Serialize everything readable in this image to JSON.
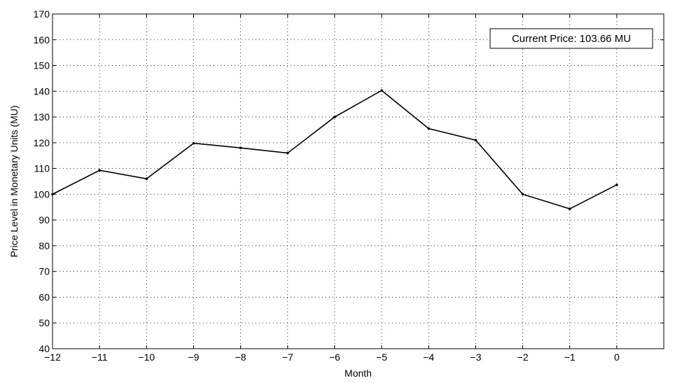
{
  "chart_data": {
    "type": "line",
    "title": "",
    "xlabel": "Month",
    "ylabel": "Price Level in Monetary Units (MU)",
    "xlim": [
      -12,
      1
    ],
    "ylim": [
      40,
      170
    ],
    "xticks": [
      -12,
      -11,
      -10,
      -9,
      -8,
      -7,
      -6,
      -5,
      -4,
      -3,
      -2,
      -1,
      0
    ],
    "yticks": [
      40,
      50,
      60,
      70,
      80,
      90,
      100,
      110,
      120,
      130,
      140,
      150,
      160,
      170
    ],
    "grid": true,
    "x": [
      -12,
      -11,
      -10,
      -9,
      -8,
      -7,
      -6,
      -5,
      -4,
      -3,
      -2,
      -1,
      0
    ],
    "series": [
      {
        "values": [
          100,
          109.3,
          106,
          119.8,
          118,
          116,
          130,
          140.3,
          125.5,
          121,
          100,
          94.3,
          103.66
        ],
        "color": "#000000"
      }
    ],
    "annotation": "Current Price: 103.66 MU"
  }
}
